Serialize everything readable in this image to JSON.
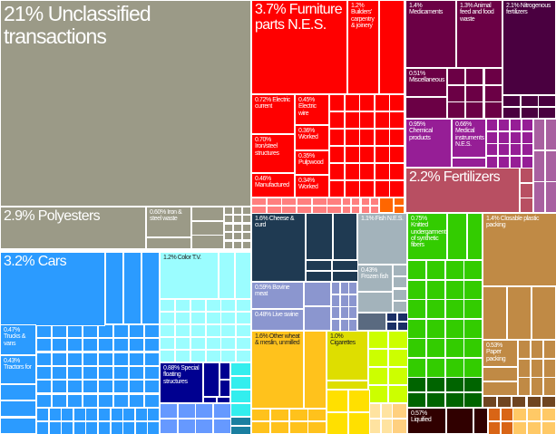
{
  "chart_data": {
    "type": "treemap",
    "title": "",
    "items": [
      {
        "label": "21% Unclassified transactions",
        "percent": 21,
        "color": "#9b9a87"
      },
      {
        "label": "2.9% Polyesters",
        "percent": 2.9,
        "color": "#9b9a87"
      },
      {
        "label": "0.60% Iron & steel waste",
        "percent": 0.6,
        "color": "#9b9a87"
      },
      {
        "label": "3.7% Furniture parts N.E.S.",
        "percent": 3.7,
        "color": "#ff0000"
      },
      {
        "label": "1.2% Builders' carpentry & joinery",
        "percent": 1.2,
        "color": "#ff0000"
      },
      {
        "label": "0.72% Electric current",
        "percent": 0.72,
        "color": "#ff0000"
      },
      {
        "label": "0.45% Electric wire",
        "percent": 0.45,
        "color": "#ff0000"
      },
      {
        "label": "0.70% Iron/steel structures",
        "percent": 0.7,
        "color": "#ff0000"
      },
      {
        "label": "0.36% Worked",
        "percent": 0.36,
        "color": "#ff0000"
      },
      {
        "label": "0.35% Pulpwood",
        "percent": 0.35,
        "color": "#ff0000"
      },
      {
        "label": "0.46% Manufactured",
        "percent": 0.46,
        "color": "#ff0000"
      },
      {
        "label": "0.34% Worked",
        "percent": 0.34,
        "color": "#ff0000"
      },
      {
        "label": "1.4% Medicaments",
        "percent": 1.4,
        "color": "#6b0045"
      },
      {
        "label": "1.3% Animal feed and food waste",
        "percent": 1.3,
        "color": "#6b0045"
      },
      {
        "label": "2.1% Nitrogenous fertilizers",
        "percent": 2.1,
        "color": "#4a0040"
      },
      {
        "label": "0.51% Miscellaneous",
        "percent": 0.51,
        "color": "#6b0045"
      },
      {
        "label": "0.95% Chemical products",
        "percent": 0.95,
        "color": "#961e96"
      },
      {
        "label": "0.66% Medical instruments N.E.S.",
        "percent": 0.66,
        "color": "#961e96"
      },
      {
        "label": "2.2% Fertilizers",
        "percent": 2.2,
        "color": "#b84f62"
      },
      {
        "label": "1.6% Cheese & curd",
        "percent": 1.6,
        "color": "#1f3a52"
      },
      {
        "label": "1.1% Fish N.E.S.",
        "percent": 1.1,
        "color": "#a3b3bb"
      },
      {
        "label": "0.43% Frozen fish",
        "percent": 0.43,
        "color": "#a3b3bb"
      },
      {
        "label": "0.59% Bovine meat",
        "percent": 0.59,
        "color": "#8b96cf"
      },
      {
        "label": "0.48% Live swine",
        "percent": 0.48,
        "color": "#8b96cf"
      },
      {
        "label": "0.75% Knitted undergarments of synthetic fibers",
        "percent": 0.75,
        "color": "#33cc00"
      },
      {
        "label": "1.4% Closable plastic packing",
        "percent": 1.4,
        "color": "#c08a45"
      },
      {
        "label": "0.53% Paper packing",
        "percent": 0.53,
        "color": "#c08a45"
      },
      {
        "label": "0.57% Liquified",
        "percent": 0.57,
        "color": "#300000"
      },
      {
        "label": "3.2% Cars",
        "percent": 3.2,
        "color": "#2b9bff"
      },
      {
        "label": "0.47% Trucks & vans",
        "percent": 0.47,
        "color": "#2b9bff"
      },
      {
        "label": "0.43% Tractors for",
        "percent": 0.43,
        "color": "#2b9bff"
      },
      {
        "label": "1.2% Color T.V.",
        "percent": 1.2,
        "color": "#9bfdff"
      },
      {
        "label": "0.88% Special floating structures",
        "percent": 0.88,
        "color": "#000090"
      },
      {
        "label": "1.6% Other wheat & meslin, unmilled",
        "percent": 1.6,
        "color": "#ffc21c"
      },
      {
        "label": "1.0% Cigarettes",
        "percent": 1.0,
        "color": "#dede00"
      }
    ]
  }
}
